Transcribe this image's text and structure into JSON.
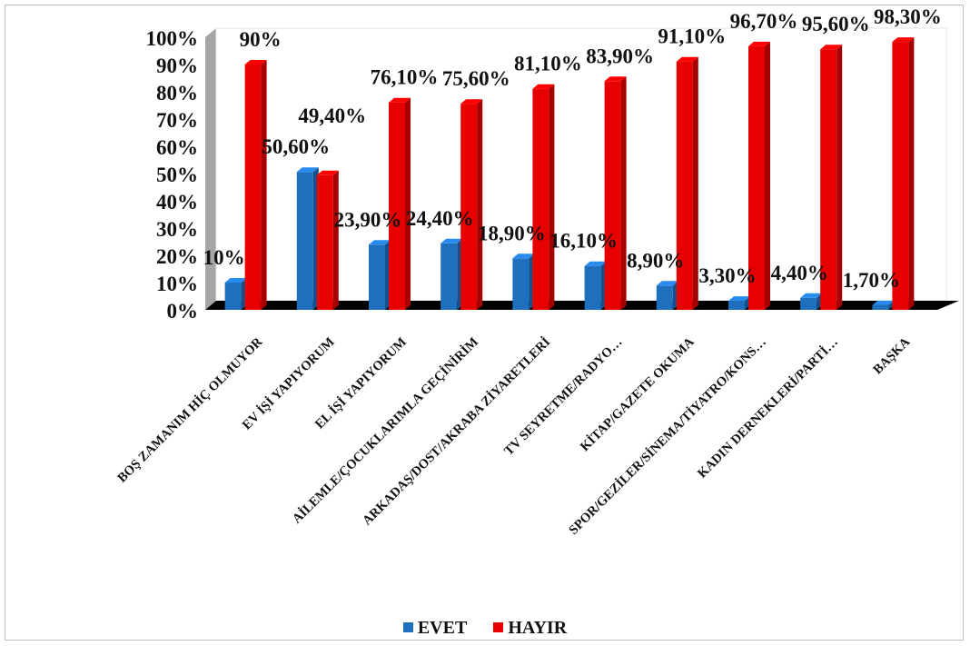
{
  "chart_data": {
    "type": "bar",
    "categories": [
      "BOŞ ZAMANIM HİÇ  OLMUYOR",
      "EV İŞİ YAPIYORUM",
      "EL İŞİ YAPIYORUM",
      "AİLEMLE/ÇOCUKLARIMLA GEÇİNİRİM",
      "ARKADAŞ/DOST/AKRABA ZİYARETLERİ",
      "TV SEYRETME/RADYO…",
      "KİTAP/GAZETE OKUMA",
      "SPOR/GEZİLER/SİNEMA/TİYATRO/KONS…",
      "KADIN DERNEKLERİ/PARTİ…",
      "BAŞKA"
    ],
    "series": [
      {
        "name": "EVET",
        "color": "#1f6fbf",
        "values": [
          10,
          50.6,
          23.9,
          24.4,
          18.9,
          16.1,
          8.9,
          3.3,
          4.4,
          1.7
        ],
        "labels": [
          "10%",
          "50,60%",
          "23,90%",
          "24,40%",
          "18,90%",
          "16,10%",
          "8,90%",
          "3,30%",
          "4,40%",
          "1,70%"
        ]
      },
      {
        "name": "HAYIR",
        "color": "#e60000",
        "values": [
          90,
          49.4,
          76.1,
          75.6,
          81.1,
          83.9,
          91.1,
          96.7,
          95.6,
          98.3
        ],
        "labels": [
          "90%",
          "49,40%",
          "76,10%",
          "75,60%",
          "81,10%",
          "83,90%",
          "91,10%",
          "96,70%",
          "95,60%",
          "98,30%"
        ]
      }
    ],
    "y_ticks": [
      "0%",
      "10%",
      "20%",
      "30%",
      "40%",
      "50%",
      "60%",
      "70%",
      "80%",
      "90%",
      "100%"
    ],
    "ylim": [
      0,
      100
    ],
    "grid": false,
    "legend_position": "bottom",
    "title": "",
    "xlabel": "",
    "ylabel": ""
  }
}
